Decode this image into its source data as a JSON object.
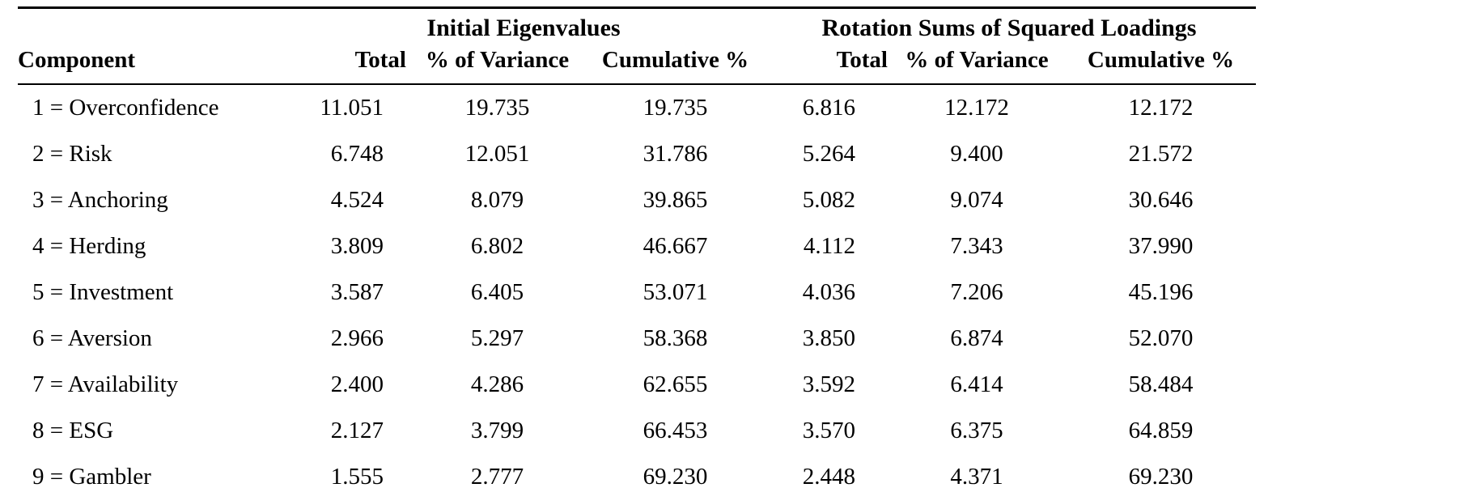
{
  "page": {
    "background_color": "#ffffff",
    "text_color": "#000000"
  },
  "chart_data": {
    "type": "table",
    "group_headers": [
      {
        "label": "",
        "span": 1
      },
      {
        "label": "Initial Eigenvalues",
        "span": 3
      },
      {
        "label": "Rotation Sums of Squared Loadings",
        "span": 3
      }
    ],
    "columns": [
      "Component",
      "Total",
      "% of Variance",
      "Cumulative %",
      "Total",
      "% of Variance",
      "Cumulative %"
    ],
    "rows": [
      [
        "1 = Overconfidence",
        "11.051",
        "19.735",
        "19.735",
        "6.816",
        "12.172",
        "12.172"
      ],
      [
        "2 = Risk",
        "6.748",
        "12.051",
        "31.786",
        "5.264",
        "9.400",
        "21.572"
      ],
      [
        "3 = Anchoring",
        "4.524",
        "8.079",
        "39.865",
        "5.082",
        "9.074",
        "30.646"
      ],
      [
        "4 = Herding",
        "3.809",
        "6.802",
        "46.667",
        "4.112",
        "7.343",
        "37.990"
      ],
      [
        "5 = Investment",
        "3.587",
        "6.405",
        "53.071",
        "4.036",
        "7.206",
        "45.196"
      ],
      [
        "6 = Aversion",
        "2.966",
        "5.297",
        "58.368",
        "3.850",
        "6.874",
        "52.070"
      ],
      [
        "7 = Availability",
        "2.400",
        "4.286",
        "62.655",
        "3.592",
        "6.414",
        "58.484"
      ],
      [
        "8 = ESG",
        "2.127",
        "3.799",
        "66.453",
        "3.570",
        "6.375",
        "64.859"
      ],
      [
        "9 = Gambler",
        "1.555",
        "2.777",
        "69.230",
        "2.448",
        "4.371",
        "69.230"
      ]
    ]
  }
}
